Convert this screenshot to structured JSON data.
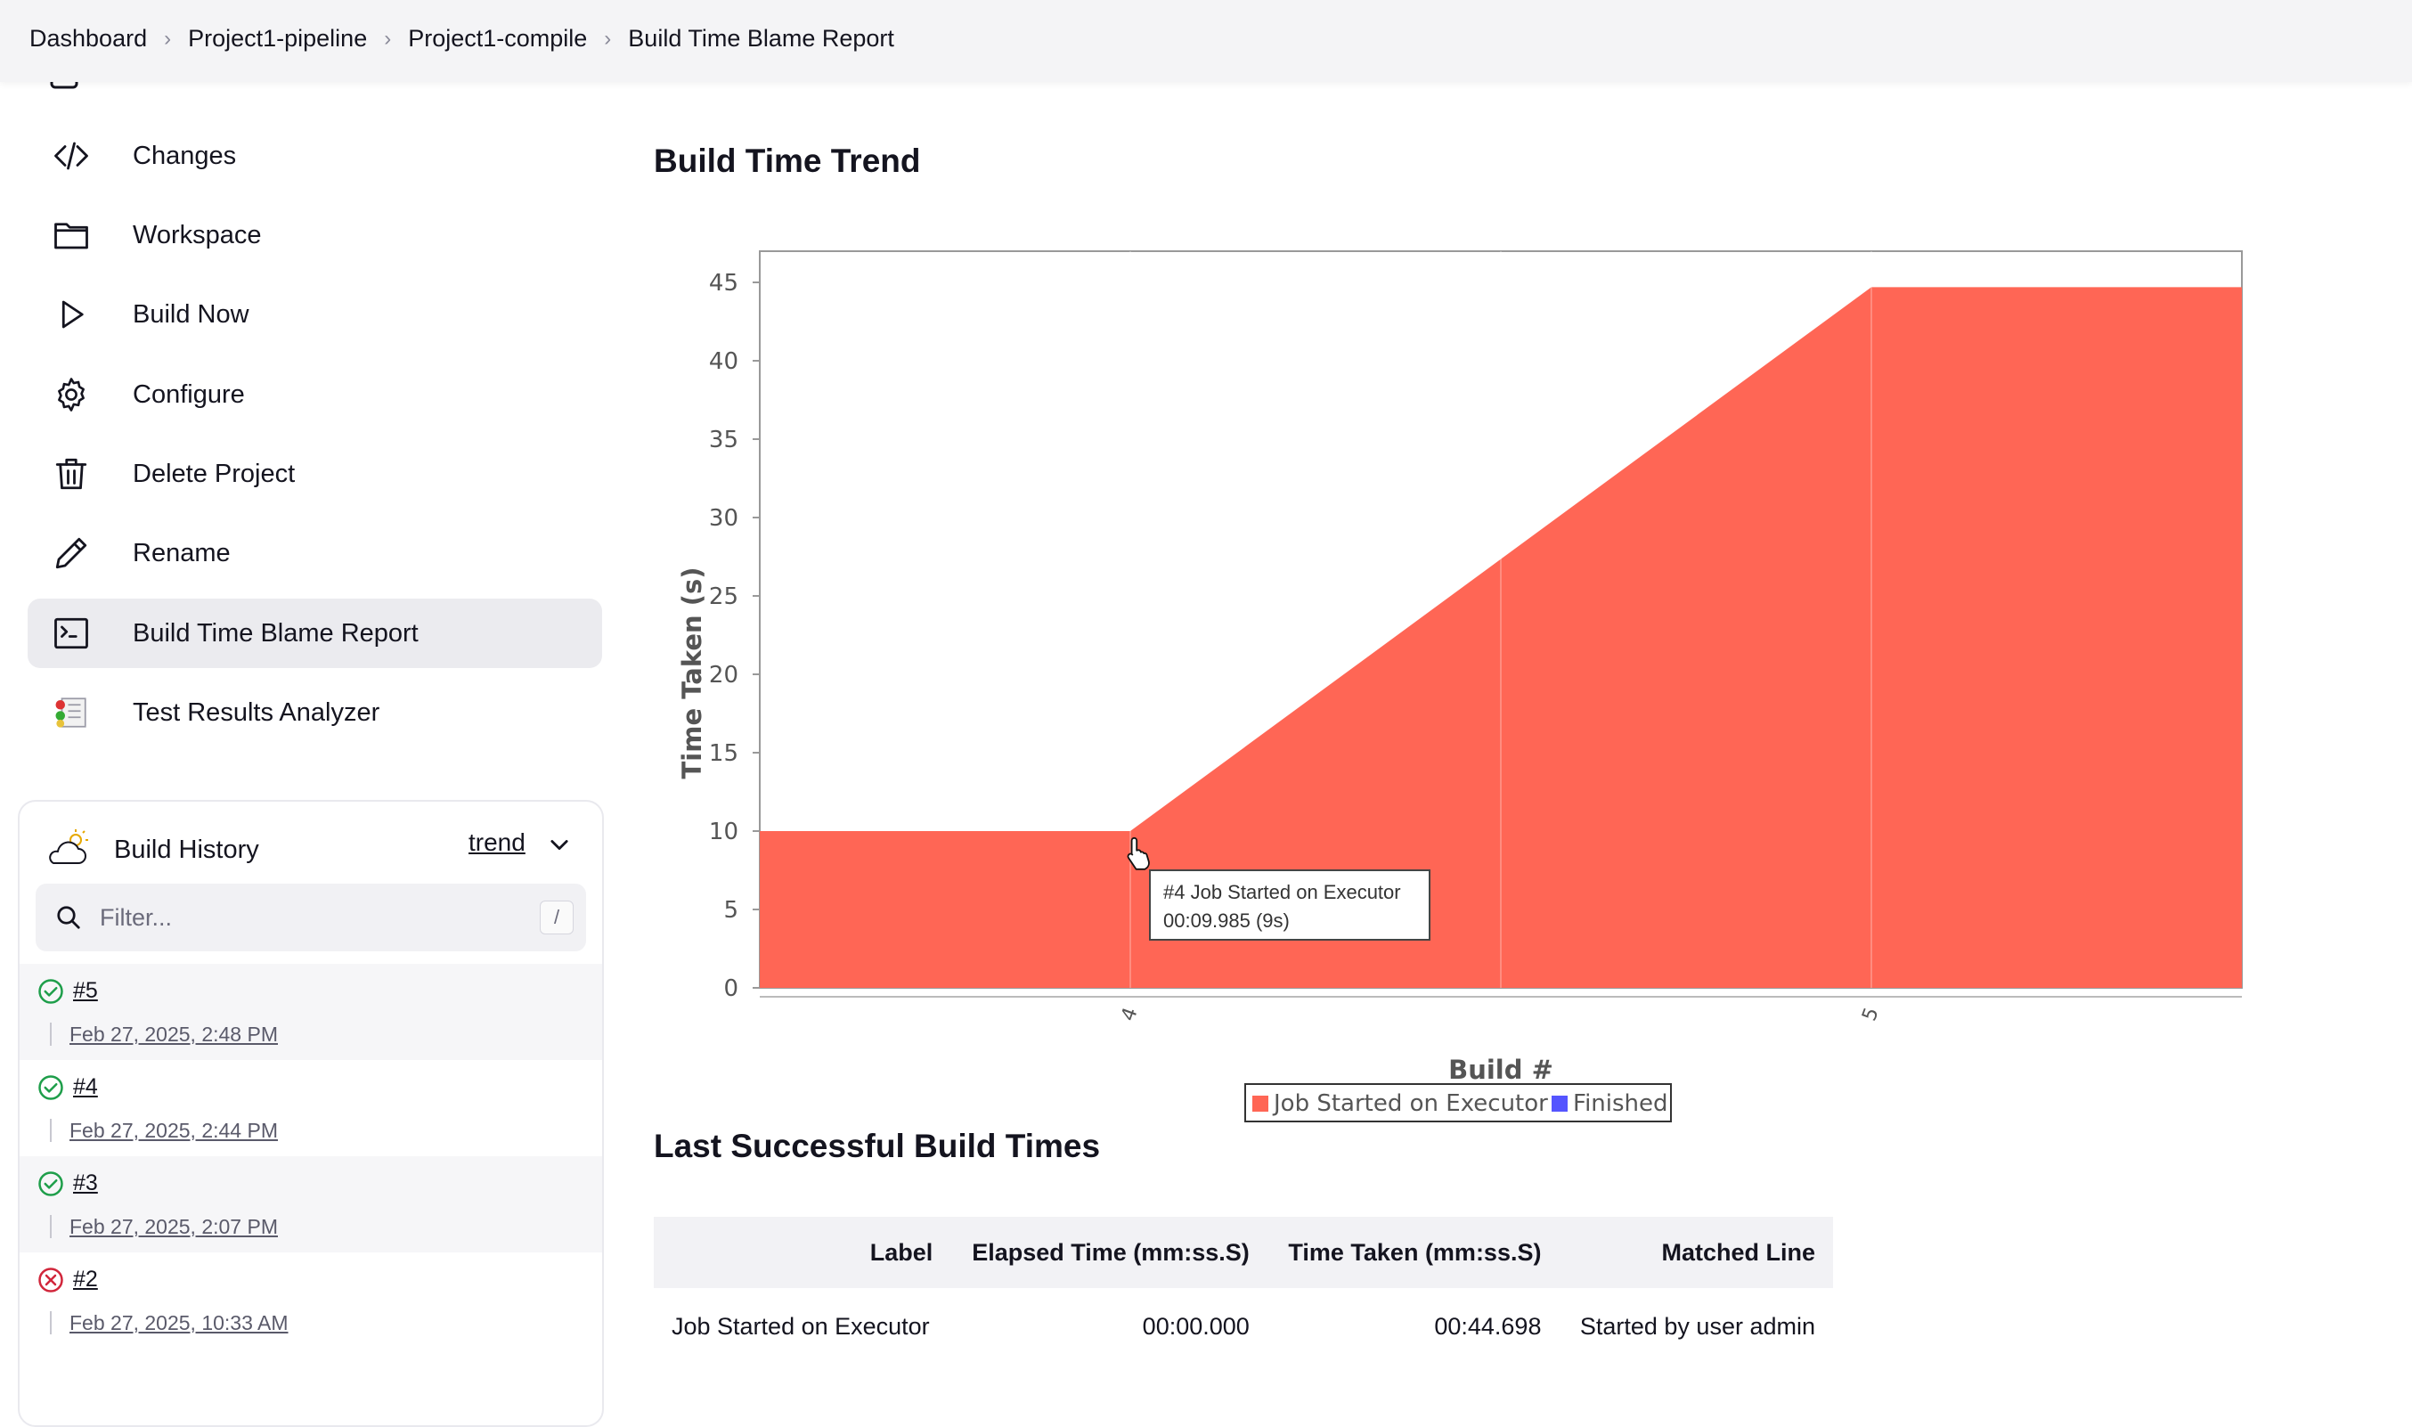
{
  "breadcrumb": {
    "items": [
      "Dashboard",
      "Project1-pipeline",
      "Project1-compile",
      "Build Time Blame Report"
    ]
  },
  "sidebar": {
    "items": [
      {
        "label": "Changes",
        "icon": "code-icon"
      },
      {
        "label": "Workspace",
        "icon": "folder-icon"
      },
      {
        "label": "Build Now",
        "icon": "play-icon"
      },
      {
        "label": "Configure",
        "icon": "gear-icon"
      },
      {
        "label": "Delete Project",
        "icon": "trash-icon"
      },
      {
        "label": "Rename",
        "icon": "pencil-icon"
      },
      {
        "label": "Build Time Blame Report",
        "icon": "terminal-icon",
        "active": true
      },
      {
        "label": "Test Results Analyzer",
        "icon": "test-results-icon"
      }
    ]
  },
  "build_history": {
    "title": "Build History",
    "trend_label": "trend",
    "filter_placeholder": "Filter...",
    "filter_shortcut": "/",
    "builds": [
      {
        "number": "#5",
        "date": "Feb 27, 2025, 2:48 PM",
        "status": "success"
      },
      {
        "number": "#4",
        "date": "Feb 27, 2025, 2:44 PM",
        "status": "success"
      },
      {
        "number": "#3",
        "date": "Feb 27, 2025, 2:07 PM",
        "status": "success"
      },
      {
        "number": "#2",
        "date": "Feb 27, 2025, 10:33 AM",
        "status": "failed"
      }
    ]
  },
  "main": {
    "trend_heading": "Build Time Trend",
    "last_heading": "Last Successful Build Times"
  },
  "chart_data": {
    "type": "area",
    "title": "",
    "xlabel": "Build #",
    "ylabel": "Time Taken (s)",
    "x_ticks": [
      "4",
      "5"
    ],
    "ylim": [
      0,
      45
    ],
    "y_ticks": [
      0,
      5,
      10,
      15,
      20,
      25,
      30,
      35,
      40,
      45
    ],
    "series": [
      {
        "name": "Job Started on Executor",
        "x": [
          3.5,
          4,
          5,
          5.5
        ],
        "values": [
          10,
          10,
          44.698,
          44.698
        ],
        "color": "#ff6655"
      },
      {
        "name": "Finished",
        "x": [
          3.5,
          4,
          5,
          5.5
        ],
        "values": [
          0,
          0,
          0,
          0
        ],
        "color": "#5555ff"
      }
    ],
    "tooltip": {
      "line1": "#4 Job Started on Executor",
      "line2": "00:09.985 (9s)"
    },
    "grid": false,
    "legend": "bottom-center"
  },
  "table": {
    "headers": [
      "Label",
      "Elapsed Time (mm:ss.S)",
      "Time Taken (mm:ss.S)",
      "Matched Line"
    ],
    "rows": [
      [
        "Job Started on Executor",
        "00:00.000",
        "00:44.698",
        "Started by user admin"
      ]
    ]
  }
}
